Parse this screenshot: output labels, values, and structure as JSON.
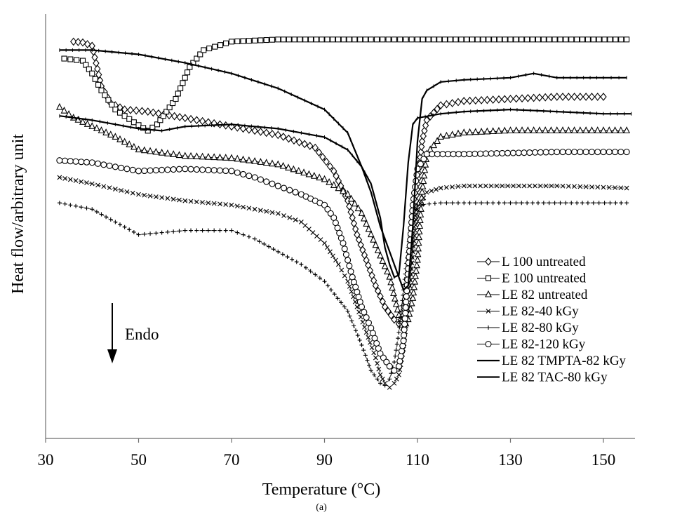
{
  "chart_data": {
    "type": "line",
    "title": "",
    "panel_label": "(a)",
    "xlabel": "Temperature (°C)",
    "ylabel": "Heat flow/arbitrary unit",
    "xlim": [
      30,
      157
    ],
    "ylim": [
      0,
      100
    ],
    "x_ticks": [
      "30",
      "50",
      "70",
      "90",
      "110",
      "130",
      "150"
    ],
    "x_tick_values": [
      30,
      50,
      70,
      90,
      110,
      130,
      150
    ],
    "grid": false,
    "legend_position": "bottom-right",
    "annotation": {
      "text": "Endo",
      "arrow": "down"
    },
    "series": [
      {
        "name": "L 100 untreated",
        "marker": "diamond",
        "points": [
          [
            36,
            93.5
          ],
          [
            38,
            93.3
          ],
          [
            40,
            92.5
          ],
          [
            42,
            83
          ],
          [
            44,
            79
          ],
          [
            47,
            77.5
          ],
          [
            52,
            77
          ],
          [
            60,
            75.5
          ],
          [
            70,
            73.5
          ],
          [
            80,
            71.5
          ],
          [
            88,
            68.5
          ],
          [
            92,
            63
          ],
          [
            95,
            56
          ],
          [
            97,
            48
          ],
          [
            99,
            42
          ],
          [
            101,
            36
          ],
          [
            103,
            31
          ],
          [
            105,
            28
          ],
          [
            106,
            27
          ],
          [
            107,
            29
          ],
          [
            108,
            36
          ],
          [
            109,
            48
          ],
          [
            110,
            60
          ],
          [
            111,
            70
          ],
          [
            112,
            75
          ],
          [
            115,
            78.5
          ],
          [
            120,
            79.5
          ],
          [
            130,
            80
          ],
          [
            140,
            80.5
          ],
          [
            150,
            80.5
          ]
        ]
      },
      {
        "name": "E 100 untreated",
        "marker": "square",
        "points": [
          [
            34,
            89.5
          ],
          [
            38,
            89
          ],
          [
            40,
            86
          ],
          [
            42,
            82
          ],
          [
            45,
            77.5
          ],
          [
            49,
            74.5
          ],
          [
            52,
            72.5
          ],
          [
            54,
            74
          ],
          [
            58,
            80
          ],
          [
            61,
            87.5
          ],
          [
            64,
            91.5
          ],
          [
            70,
            93.5
          ],
          [
            80,
            94
          ],
          [
            100,
            94
          ],
          [
            110,
            94
          ],
          [
            130,
            94
          ],
          [
            155,
            94
          ]
        ]
      },
      {
        "name": "LE 82 untreated",
        "marker": "triangle",
        "points": [
          [
            33,
            78
          ],
          [
            36,
            75.5
          ],
          [
            40,
            73.5
          ],
          [
            45,
            71
          ],
          [
            50,
            68
          ],
          [
            60,
            66.5
          ],
          [
            70,
            66
          ],
          [
            80,
            64.5
          ],
          [
            90,
            61
          ],
          [
            95,
            57.5
          ],
          [
            98,
            53
          ],
          [
            100,
            48
          ],
          [
            102,
            43
          ],
          [
            104,
            38
          ],
          [
            106,
            29
          ],
          [
            107,
            26
          ],
          [
            108,
            28
          ],
          [
            109,
            33
          ],
          [
            110,
            42
          ],
          [
            111,
            58
          ],
          [
            112,
            67
          ],
          [
            115,
            71
          ],
          [
            120,
            72
          ],
          [
            130,
            72.5
          ],
          [
            140,
            72.5
          ],
          [
            155,
            72.5
          ]
        ]
      },
      {
        "name": "LE 82-40 kGy",
        "marker": "x",
        "points": [
          [
            33,
            61.5
          ],
          [
            40,
            60
          ],
          [
            50,
            57.5
          ],
          [
            60,
            56
          ],
          [
            70,
            55
          ],
          [
            80,
            53
          ],
          [
            85,
            51
          ],
          [
            90,
            46
          ],
          [
            93,
            41
          ],
          [
            95,
            37
          ],
          [
            97,
            31
          ],
          [
            99,
            25
          ],
          [
            101,
            19
          ],
          [
            102,
            15
          ],
          [
            103,
            13
          ],
          [
            104,
            12
          ],
          [
            105,
            13
          ],
          [
            106,
            15
          ],
          [
            107,
            21
          ],
          [
            108,
            32
          ],
          [
            109,
            44
          ],
          [
            110,
            54
          ],
          [
            112,
            58
          ],
          [
            115,
            59
          ],
          [
            120,
            59.5
          ],
          [
            140,
            59.5
          ],
          [
            155,
            59
          ]
        ]
      },
      {
        "name": "LE 82-80 kGy",
        "marker": "plus",
        "points": [
          [
            33,
            55.5
          ],
          [
            40,
            54
          ],
          [
            45,
            51
          ],
          [
            50,
            48
          ],
          [
            55,
            48.5
          ],
          [
            60,
            49
          ],
          [
            70,
            49
          ],
          [
            75,
            47
          ],
          [
            80,
            44
          ],
          [
            85,
            41
          ],
          [
            90,
            37
          ],
          [
            95,
            30
          ],
          [
            98,
            22
          ],
          [
            100,
            16
          ],
          [
            102,
            13
          ],
          [
            103,
            12.5
          ],
          [
            104,
            14
          ],
          [
            105,
            18
          ],
          [
            106,
            25
          ],
          [
            107,
            35
          ],
          [
            108,
            45
          ],
          [
            109,
            53
          ],
          [
            110,
            55
          ],
          [
            115,
            55.5
          ],
          [
            130,
            55.5
          ],
          [
            155,
            55.5
          ]
        ]
      },
      {
        "name": "LE 82-120 kGy",
        "marker": "circle",
        "points": [
          [
            33,
            65.5
          ],
          [
            40,
            65
          ],
          [
            50,
            63
          ],
          [
            60,
            63.5
          ],
          [
            70,
            63
          ],
          [
            75,
            61.5
          ],
          [
            80,
            59.5
          ],
          [
            85,
            57.5
          ],
          [
            90,
            55
          ],
          [
            92,
            52
          ],
          [
            94,
            46
          ],
          [
            96,
            38
          ],
          [
            98,
            31
          ],
          [
            100,
            26
          ],
          [
            102,
            20
          ],
          [
            104,
            17
          ],
          [
            105,
            16
          ],
          [
            106,
            17
          ],
          [
            107,
            23
          ],
          [
            108,
            40
          ],
          [
            109,
            55
          ],
          [
            110,
            63.5
          ],
          [
            112,
            67
          ],
          [
            120,
            67
          ],
          [
            140,
            67.5
          ],
          [
            155,
            67.5
          ]
        ]
      },
      {
        "name": "LE 82 TMPTA-82  kGy",
        "marker": "none",
        "points": [
          [
            33,
            91.5
          ],
          [
            40,
            91.5
          ],
          [
            50,
            90.5
          ],
          [
            60,
            88.5
          ],
          [
            70,
            86
          ],
          [
            80,
            82.5
          ],
          [
            90,
            77.5
          ],
          [
            95,
            72
          ],
          [
            98,
            64
          ],
          [
            100,
            58
          ],
          [
            102,
            50
          ],
          [
            104,
            44
          ],
          [
            105,
            41
          ],
          [
            106,
            38
          ],
          [
            107,
            35
          ],
          [
            108,
            36
          ],
          [
            109,
            50
          ],
          [
            110,
            70
          ],
          [
            111,
            80
          ],
          [
            112,
            82
          ],
          [
            115,
            84
          ],
          [
            120,
            84.5
          ],
          [
            130,
            85
          ],
          [
            135,
            86
          ],
          [
            140,
            85
          ],
          [
            150,
            85
          ],
          [
            155,
            85
          ]
        ]
      },
      {
        "name": "LE 82 TAC-80 kGy",
        "marker": "none",
        "points": [
          [
            33,
            76
          ],
          [
            40,
            75
          ],
          [
            45,
            74
          ],
          [
            50,
            73
          ],
          [
            55,
            72.5
          ],
          [
            60,
            73.5
          ],
          [
            70,
            74
          ],
          [
            80,
            73
          ],
          [
            85,
            72
          ],
          [
            90,
            71
          ],
          [
            95,
            68
          ],
          [
            98,
            64
          ],
          [
            100,
            60
          ],
          [
            102,
            52
          ],
          [
            103,
            45
          ],
          [
            104,
            41
          ],
          [
            105,
            38
          ],
          [
            106,
            38.5
          ],
          [
            107,
            50
          ],
          [
            108,
            65
          ],
          [
            109,
            74
          ],
          [
            110,
            75.5
          ],
          [
            115,
            76.5
          ],
          [
            120,
            77
          ],
          [
            130,
            77.5
          ],
          [
            140,
            77
          ],
          [
            150,
            76.5
          ],
          [
            156,
            76.5
          ]
        ]
      }
    ]
  }
}
